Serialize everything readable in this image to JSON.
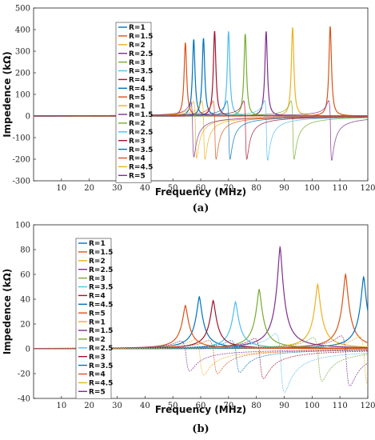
{
  "chart_data": [
    {
      "type": "line",
      "panel": "(a)",
      "caption": "(a)",
      "xlabel": "Frequency (MHz)",
      "ylabel": "Impedence  (kΩ)",
      "xlim": [
        0,
        120
      ],
      "ylim": [
        -300,
        500
      ],
      "xticks": [
        10,
        20,
        30,
        40,
        50,
        60,
        70,
        80,
        90,
        100,
        110,
        120
      ],
      "yticks": [
        -300,
        -200,
        -100,
        0,
        100,
        200,
        300,
        400,
        500
      ],
      "grid": false,
      "legend_position": "upper-left-center",
      "series": [
        {
          "name": "R=1",
          "kind": "real",
          "color": "#0072BD",
          "peak_freq": 61.0,
          "peak": 360
        },
        {
          "name": "R=1.5",
          "kind": "real",
          "color": "#D95319",
          "peak_freq": 106.5,
          "peak": 415
        },
        {
          "name": "R=2",
          "kind": "real",
          "color": "#EDB120",
          "peak_freq": 93.0,
          "peak": 410
        },
        {
          "name": "R=2.5",
          "kind": "real",
          "color": "#7E2F8E",
          "peak_freq": 83.5,
          "peak": 392
        },
        {
          "name": "R=3",
          "kind": "real",
          "color": "#77AC30",
          "peak_freq": 76.0,
          "peak": 380
        },
        {
          "name": "R=3.5",
          "kind": "real",
          "color": "#4DBEEE",
          "peak_freq": 70.0,
          "peak": 392
        },
        {
          "name": "R=4",
          "kind": "real",
          "color": "#A2142F",
          "peak_freq": 65.0,
          "peak": 393
        },
        {
          "name": "R=4.5",
          "kind": "real",
          "color": "#0072BD",
          "peak_freq": 57.5,
          "peak": 355
        },
        {
          "name": "R=5",
          "kind": "real",
          "color": "#D95319",
          "peak_freq": 54.5,
          "peak": 340
        },
        {
          "name": "R=1",
          "kind": "imaginary",
          "color": "#EDB120",
          "peak_freq": 61.0,
          "peak": -200
        },
        {
          "name": "R=1.5",
          "kind": "imaginary",
          "color": "#7E2F8E",
          "peak_freq": 106.5,
          "peak": -205
        },
        {
          "name": "R=2",
          "kind": "imaginary",
          "color": "#77AC30",
          "peak_freq": 93.0,
          "peak": -200
        },
        {
          "name": "R=2.5",
          "kind": "imaginary",
          "color": "#4DBEEE",
          "peak_freq": 83.5,
          "peak": -205
        },
        {
          "name": "R=3",
          "kind": "imaginary",
          "color": "#A2142F",
          "peak_freq": 76.0,
          "peak": -200
        },
        {
          "name": "R=3.5",
          "kind": "imaginary",
          "color": "#0072BD",
          "peak_freq": 70.0,
          "peak": -200
        },
        {
          "name": "R=4",
          "kind": "imaginary",
          "color": "#D95319",
          "peak_freq": 65.0,
          "peak": -200
        },
        {
          "name": "R=4.5",
          "kind": "imaginary",
          "color": "#EDB120",
          "peak_freq": 58.0,
          "peak": -195
        },
        {
          "name": "R=5",
          "kind": "imaginary",
          "color": "#7E2F8E",
          "peak_freq": 57.0,
          "peak": -190
        }
      ]
    },
    {
      "type": "line",
      "panel": "(b)",
      "caption": "(b)",
      "xlabel": "Frequency (MHz)",
      "ylabel": "Impedence  (kΩ)",
      "xlim": [
        0,
        120
      ],
      "ylim": [
        -40,
        100
      ],
      "xticks": [
        10,
        20,
        30,
        40,
        50,
        60,
        70,
        80,
        90,
        100,
        110,
        120
      ],
      "yticks": [
        -40,
        -20,
        0,
        20,
        40,
        60,
        80,
        100
      ],
      "grid": false,
      "legend_position": "left",
      "series": [
        {
          "name": "R=1",
          "kind": "real",
          "color": "#0072BD",
          "peak_freq": 59.5,
          "peak": 42
        },
        {
          "name": "R=1.5",
          "kind": "real",
          "color": "#D95319",
          "peak_freq": 112.0,
          "peak": 60
        },
        {
          "name": "R=2",
          "kind": "real",
          "color": "#EDB120",
          "peak_freq": 102.0,
          "peak": 52
        },
        {
          "name": "R=2.5",
          "kind": "real",
          "color": "#7E2F8E",
          "peak_freq": 88.5,
          "peak": 82
        },
        {
          "name": "R=3",
          "kind": "real",
          "color": "#77AC30",
          "peak_freq": 81.0,
          "peak": 48
        },
        {
          "name": "R=3.5",
          "kind": "real",
          "color": "#4DBEEE",
          "peak_freq": 72.5,
          "peak": 38
        },
        {
          "name": "R=4",
          "kind": "real",
          "color": "#A2142F",
          "peak_freq": 64.5,
          "peak": 39
        },
        {
          "name": "R=4.5",
          "kind": "real",
          "color": "#0072BD",
          "peak_freq": 118.5,
          "peak": 58
        },
        {
          "name": "R=5",
          "kind": "real",
          "color": "#D95319",
          "peak_freq": 54.5,
          "peak": 35
        },
        {
          "name": "R=1",
          "kind": "imaginary",
          "color": "#EDB120",
          "peak_freq": 59.5,
          "peak": -21
        },
        {
          "name": "R=1.5",
          "kind": "imaginary",
          "color": "#7E2F8E",
          "peak_freq": 112.0,
          "peak": -30
        },
        {
          "name": "R=2",
          "kind": "imaginary",
          "color": "#77AC30",
          "peak_freq": 102.0,
          "peak": -26
        },
        {
          "name": "R=2.5",
          "kind": "imaginary",
          "color": "#4DBEEE",
          "peak_freq": 88.5,
          "peak": -35
        },
        {
          "name": "R=3",
          "kind": "imaginary",
          "color": "#A2142F",
          "peak_freq": 81.0,
          "peak": -24
        },
        {
          "name": "R=3.5",
          "kind": "imaginary",
          "color": "#0072BD",
          "peak_freq": 72.5,
          "peak": -19
        },
        {
          "name": "R=4",
          "kind": "imaginary",
          "color": "#D95319",
          "peak_freq": 64.5,
          "peak": -20
        },
        {
          "name": "R=4.5",
          "kind": "imaginary",
          "color": "#EDB120",
          "peak_freq": 118.5,
          "peak": -29
        },
        {
          "name": "R=5",
          "kind": "imaginary",
          "color": "#7E2F8E",
          "peak_freq": 54.5,
          "peak": -18
        }
      ]
    }
  ]
}
